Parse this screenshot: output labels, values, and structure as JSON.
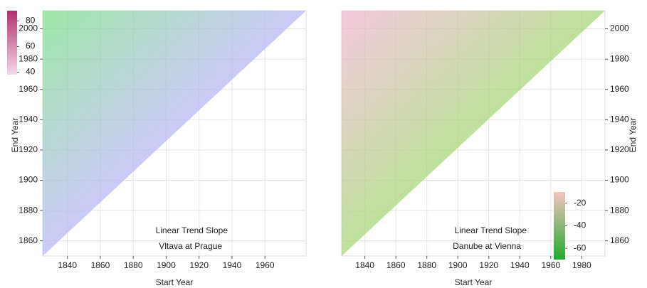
{
  "chart_data": [
    {
      "type": "heatmap",
      "title": "Linear Trend Slope",
      "subtitle": "Vltava at Prague",
      "xlabel": "Start Year",
      "ylabel": "End Year",
      "xlim": [
        1825,
        1985
      ],
      "xticks": [
        1840,
        1860,
        1880,
        1900,
        1920,
        1940,
        1960
      ],
      "ylim": [
        1850,
        2012
      ],
      "yticks": [
        1860,
        1880,
        1900,
        1920,
        1940,
        1960,
        1980,
        2000
      ],
      "grid": true,
      "colorbar": {
        "lim": [
          38,
          88
        ],
        "ticks": [
          40,
          60,
          80
        ],
        "colors": [
          "#f4d9e6",
          "#b0306e"
        ]
      },
      "colors": [
        "#7fe08a",
        "#b9b8f5",
        "#f08c7a"
      ]
    },
    {
      "type": "heatmap",
      "title": "Linear Trend Slope",
      "subtitle": "Danube at Vienna",
      "xlabel": "Start Year",
      "ylabel": "End Year",
      "xlim": [
        1825,
        1995
      ],
      "xticks": [
        1840,
        1860,
        1880,
        1900,
        1920,
        1940,
        1960,
        1980
      ],
      "ylim": [
        1850,
        2012
      ],
      "yticks": [
        1860,
        1880,
        1900,
        1920,
        1940,
        1960,
        1980,
        2000
      ],
      "grid": true,
      "colorbar": {
        "lim": [
          -70,
          -10
        ],
        "ticks": [
          -60,
          -40,
          -20
        ],
        "colors": [
          "#1faa2c",
          "#f6c3c0"
        ]
      },
      "colors": [
        "#f2b7d2",
        "#a8d77a",
        "#4a6fe0"
      ]
    }
  ]
}
